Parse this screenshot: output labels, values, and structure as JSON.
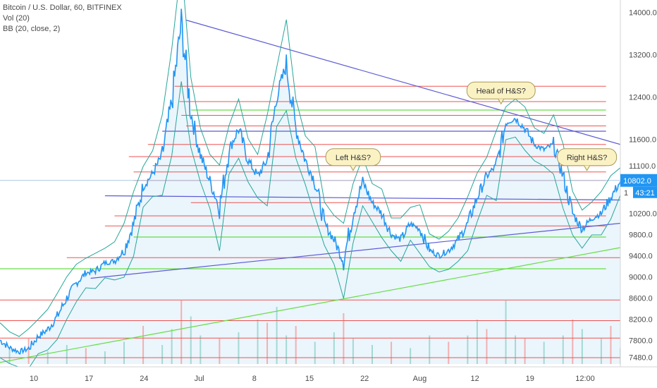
{
  "legend": {
    "symbol_line": "Bitcoin / U.S. Dollar, 60, BITFINEX",
    "vol_line": "Vol (20)",
    "bb_line": "BB (20, close, 2)"
  },
  "colors": {
    "price": "#2196f3",
    "bands": "#26a69a",
    "fill": "#e8f3fb",
    "resistance": "#ef5350",
    "support": "#66dd44",
    "trend": "#5b5bd6",
    "vol_up": "#9bd6ce",
    "vol_down": "#f2a9a9",
    "callout_bg": "#fbf2c4",
    "callout_border": "#a89a57"
  },
  "chart_data": {
    "type": "line",
    "x_tick_labels": [
      "10",
      "17",
      "24",
      "Jul",
      "8",
      "15",
      "22",
      "Aug",
      "12",
      "19",
      "12:00"
    ],
    "y_tick_labels": [
      "14000.0",
      "13200.0",
      "12400.0",
      "11600.0",
      "11100.0",
      "10200.0",
      "9800.0",
      "9400.0",
      "9000.0",
      "8600.0",
      "8200.0",
      "7800.0",
      "7480.0"
    ],
    "y_ticks": [
      14000,
      13200,
      12400,
      11600,
      11100,
      10200,
      9800,
      9400,
      9000,
      8600,
      8200,
      7800,
      7480
    ],
    "ylim": [
      7350,
      14150
    ],
    "xlim": [
      7,
      72
    ],
    "price_series": [
      [
        7,
        7800
      ],
      [
        8,
        7660
      ],
      [
        9,
        7580
      ],
      [
        10,
        7640
      ],
      [
        11,
        7870
      ],
      [
        12,
        8000
      ],
      [
        13,
        8250
      ],
      [
        14,
        8600
      ],
      [
        15,
        8880
      ],
      [
        16,
        9070
      ],
      [
        17,
        9110
      ],
      [
        18,
        9260
      ],
      [
        19,
        9300
      ],
      [
        20,
        9500
      ],
      [
        21,
        10000
      ],
      [
        22,
        10700
      ],
      [
        23,
        10950
      ],
      [
        24,
        11300
      ],
      [
        25,
        12300
      ],
      [
        26,
        13800
      ],
      [
        27,
        12100
      ],
      [
        28,
        11300
      ],
      [
        29,
        10800
      ],
      [
        30,
        10300
      ],
      [
        31,
        11400
      ],
      [
        32,
        11800
      ],
      [
        33,
        11200
      ],
      [
        34,
        10900
      ],
      [
        35,
        11200
      ],
      [
        36,
        12400
      ],
      [
        37,
        13000
      ],
      [
        38,
        11800
      ],
      [
        39,
        11200
      ],
      [
        40,
        10800
      ],
      [
        41,
        10000
      ],
      [
        42,
        9700
      ],
      [
        43,
        9300
      ],
      [
        44,
        10200
      ],
      [
        45,
        10800
      ],
      [
        46,
        10400
      ],
      [
        47,
        10200
      ],
      [
        48,
        9800
      ],
      [
        49,
        9700
      ],
      [
        50,
        10000
      ],
      [
        51,
        9900
      ],
      [
        52,
        9500
      ],
      [
        53,
        9400
      ],
      [
        54,
        9500
      ],
      [
        55,
        9700
      ],
      [
        56,
        10000
      ],
      [
        57,
        10500
      ],
      [
        58,
        10900
      ],
      [
        59,
        11100
      ],
      [
        60,
        11900
      ],
      [
        61,
        12000
      ],
      [
        62,
        11800
      ],
      [
        63,
        11500
      ],
      [
        64,
        11400
      ],
      [
        65,
        11500
      ],
      [
        66,
        10900
      ],
      [
        67,
        10200
      ],
      [
        68,
        9900
      ],
      [
        69,
        10100
      ],
      [
        70,
        10200
      ],
      [
        71,
        10500
      ],
      [
        72,
        10800
      ]
    ],
    "current_price": "10802.0",
    "countdown": "43:21",
    "price_level_tag": "1",
    "volume_scale": [
      0,
      100
    ],
    "volume": [
      [
        8,
        25
      ],
      [
        10,
        40
      ],
      [
        12,
        20
      ],
      [
        14,
        30
      ],
      [
        16,
        25
      ],
      [
        18,
        20
      ],
      [
        20,
        35
      ],
      [
        22,
        60
      ],
      [
        24,
        30
      ],
      [
        25,
        55
      ],
      [
        26,
        100
      ],
      [
        27,
        75
      ],
      [
        28,
        45
      ],
      [
        30,
        40
      ],
      [
        32,
        50
      ],
      [
        34,
        70
      ],
      [
        35,
        65
      ],
      [
        36,
        90
      ],
      [
        37,
        45
      ],
      [
        38,
        60
      ],
      [
        40,
        35
      ],
      [
        42,
        50
      ],
      [
        43,
        80
      ],
      [
        44,
        40
      ],
      [
        46,
        30
      ],
      [
        48,
        35
      ],
      [
        50,
        25
      ],
      [
        52,
        45
      ],
      [
        54,
        35
      ],
      [
        56,
        45
      ],
      [
        57,
        70
      ],
      [
        58,
        55
      ],
      [
        60,
        100
      ],
      [
        61,
        45
      ],
      [
        62,
        40
      ],
      [
        64,
        35
      ],
      [
        66,
        45
      ],
      [
        67,
        70
      ],
      [
        68,
        55
      ],
      [
        70,
        40
      ],
      [
        71,
        60
      ],
      [
        72,
        25
      ]
    ],
    "red_levels": [
      {
        "y": 12600,
        "x0": 25.3,
        "x1": 70.5
      },
      {
        "y": 12310,
        "x0": 25.8,
        "x1": 70.5
      },
      {
        "y": 12050,
        "x0": 26.0,
        "x1": 70.5
      },
      {
        "y": 11850,
        "x0": 26.5,
        "x1": 70.5
      },
      {
        "y": 11500,
        "x0": 22.5,
        "x1": 70.5
      },
      {
        "y": 11270,
        "x0": 20.5,
        "x1": 70.5
      },
      {
        "y": 11100,
        "x0": 23.0,
        "x1": 70.5
      },
      {
        "y": 10980,
        "x0": 21.0,
        "x1": 70.5
      },
      {
        "y": 10820,
        "x0": 21.0,
        "x1": 70.5
      },
      {
        "y": 10400,
        "x0": 27.0,
        "x1": 70.5
      },
      {
        "y": 10150,
        "x0": 19.0,
        "x1": 70.5
      },
      {
        "y": 9960,
        "x0": 18.0,
        "x1": 70.5
      },
      {
        "y": 9360,
        "x0": 14.0,
        "x1": 72.0
      },
      {
        "y": 8560,
        "x0": 7.0,
        "x1": 72.0
      },
      {
        "y": 8170,
        "x0": 7.0,
        "x1": 72.0
      },
      {
        "y": 7840,
        "x0": 7.0,
        "x1": 72.0
      },
      {
        "y": 7470,
        "x0": 7.0,
        "x1": 72.0
      }
    ],
    "green_levels": [
      {
        "y": 12150,
        "x0": 27.0,
        "x1": 70.5
      },
      {
        "y": 9750,
        "x0": 21.0,
        "x1": 70.5
      },
      {
        "y": 9150,
        "x0": 7.0,
        "x1": 70.5
      }
    ],
    "trend_lines": [
      {
        "kind": "resistance",
        "x0": 26.5,
        "y0": 13850,
        "x1": 72.0,
        "y1": 11500
      },
      {
        "kind": "neckline",
        "x0": 16.5,
        "y0": 8970,
        "x1": 72.0,
        "y1": 10010
      },
      {
        "kind": "horizontal",
        "x0": 18.0,
        "y0": 10530,
        "x1": 72.0,
        "y1": 10450
      },
      {
        "kind": "horizontal",
        "x0": 24.0,
        "y0": 11750,
        "x1": 70.5,
        "y1": 11750
      },
      {
        "kind": "support",
        "x0": 7.0,
        "y0": 7380,
        "x1": 72.0,
        "y1": 9550
      }
    ],
    "annotations": [
      {
        "label": "Left H&S?",
        "x": 44.0,
        "y": 11260
      },
      {
        "label": "Head of H&S?",
        "x": 59.5,
        "y": 12520
      },
      {
        "label": "Right H&S?",
        "x": 68.5,
        "y": 11260
      }
    ]
  }
}
